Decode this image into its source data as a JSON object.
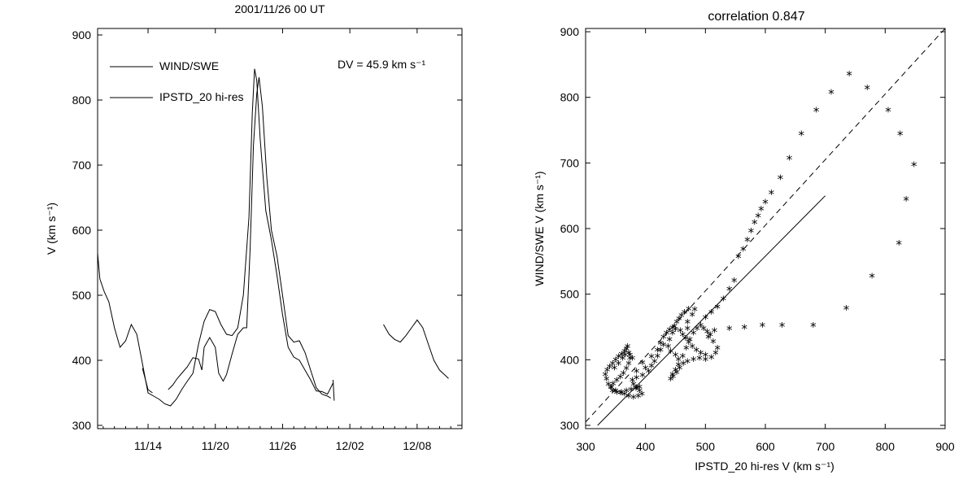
{
  "chart_data": [
    {
      "type": "line",
      "title": "2001/11/26 00 UT",
      "xlabel": "",
      "ylabel": "V (km s⁻¹)",
      "annotation": "DV = 45.9 km s⁻¹",
      "ylim": [
        295,
        910
      ],
      "xlim_days_from_nov14": [
        -4.5,
        28.0
      ],
      "x_ticks": [
        "11/14",
        "11/20",
        "11/26",
        "12/02",
        "12/08"
      ],
      "y_ticks": [
        300,
        400,
        500,
        600,
        700,
        800,
        900
      ],
      "legend": {
        "placement": "top-left",
        "entries": [
          "WIND/SWE",
          "IPSTD_20 hi-res"
        ]
      },
      "series": [
        {
          "name": "WIND/SWE",
          "points": [
            [
              -4.5,
              565
            ],
            [
              -4.3,
              525
            ],
            [
              -3.9,
              505
            ],
            [
              -3.5,
              490
            ],
            [
              -3.0,
              450
            ],
            [
              -2.5,
              420
            ],
            [
              -2.0,
              430
            ],
            [
              -1.5,
              455
            ],
            [
              -1.0,
              440
            ],
            [
              -0.5,
              395
            ],
            [
              0.0,
              350
            ],
            [
              0.5,
              345
            ],
            [
              1.0,
              340
            ],
            [
              1.5,
              333
            ],
            [
              2.0,
              330
            ],
            [
              2.5,
              340
            ],
            [
              3.0,
              355
            ],
            [
              3.5,
              368
            ],
            [
              4.0,
              380
            ],
            [
              4.5,
              425
            ],
            [
              5.0,
              460
            ],
            [
              5.5,
              478
            ],
            [
              6.0,
              475
            ],
            [
              6.5,
              455
            ],
            [
              7.0,
              440
            ],
            [
              7.5,
              438
            ],
            [
              8.0,
              450
            ],
            [
              8.5,
              500
            ],
            [
              9.0,
              620
            ],
            [
              9.3,
              780
            ],
            [
              9.5,
              848
            ],
            [
              9.7,
              830
            ],
            [
              10.0,
              740
            ],
            [
              10.5,
              630
            ],
            [
              11.0,
              585
            ],
            [
              11.5,
              530
            ],
            [
              12.0,
              470
            ],
            [
              12.5,
              420
            ],
            [
              13.0,
              405
            ],
            [
              13.5,
              400
            ],
            [
              14.0,
              385
            ],
            [
              14.5,
              370
            ],
            [
              15.0,
              353
            ],
            [
              15.5,
              352
            ],
            [
              16.0,
              348
            ],
            [
              16.5,
              365
            ]
          ]
        },
        {
          "name": "IPSTD_20 hi-res",
          "segments": [
            [
              [
                -0.5,
                388
              ],
              [
                0.0,
                355
              ],
              [
                0.4,
                350
              ]
            ],
            [
              [
                1.8,
                355
              ],
              [
                2.2,
                362
              ],
              [
                2.6,
                372
              ],
              [
                3.0,
                380
              ],
              [
                3.5,
                390
              ],
              [
                4.0,
                404
              ],
              [
                4.5,
                402
              ],
              [
                4.8,
                385
              ]
            ],
            [
              [
                4.8,
                385
              ],
              [
                5.0,
                420
              ],
              [
                5.5,
                435
              ],
              [
                6.0,
                420
              ],
              [
                6.3,
                380
              ],
              [
                6.7,
                368
              ],
              [
                7.0,
                378
              ],
              [
                7.5,
                410
              ],
              [
                8.0,
                440
              ],
              [
                8.5,
                450
              ],
              [
                8.8,
                450
              ],
              [
                9.1,
                570
              ],
              [
                9.4,
                730
              ],
              [
                9.7,
                810
              ],
              [
                9.9,
                835
              ],
              [
                10.2,
                790
              ],
              [
                10.6,
                680
              ],
              [
                11.0,
                600
              ],
              [
                11.5,
                560
              ],
              [
                12.0,
                500
              ],
              [
                12.5,
                438
              ],
              [
                13.0,
                428
              ],
              [
                13.5,
                430
              ],
              [
                14.0,
                412
              ],
              [
                14.5,
                385
              ],
              [
                15.0,
                358
              ],
              [
                15.5,
                348
              ],
              [
                16.0,
                345
              ],
              [
                16.3,
                342
              ]
            ],
            [
              [
                16.5,
                370
              ],
              [
                16.6,
                338
              ]
            ],
            [
              [
                21.0,
                455
              ],
              [
                21.5,
                440
              ],
              [
                22.0,
                432
              ],
              [
                22.5,
                428
              ],
              [
                23.0,
                438
              ],
              [
                23.5,
                450
              ],
              [
                24.0,
                462
              ],
              [
                24.5,
                450
              ],
              [
                25.0,
                425
              ],
              [
                25.5,
                400
              ],
              [
                26.0,
                385
              ],
              [
                26.5,
                377
              ],
              [
                26.8,
                372
              ]
            ]
          ]
        }
      ]
    },
    {
      "type": "scatter",
      "title": "correlation 0.847",
      "xlabel": "IPSTD_20 hi-res V (km s⁻¹)",
      "ylabel": "WIND/SWE V (km s⁻¹)",
      "xlim": [
        300,
        900
      ],
      "ylim": [
        295,
        905
      ],
      "x_ticks": [
        300,
        400,
        500,
        600,
        700,
        800,
        900
      ],
      "y_ticks": [
        300,
        400,
        500,
        600,
        700,
        800,
        900
      ],
      "reference_lines": [
        {
          "style": "dashed",
          "points": [
            [
              300,
              305
            ],
            [
              900,
              905
            ]
          ]
        },
        {
          "style": "solid",
          "points": [
            [
              320,
              300
            ],
            [
              700,
              650
            ]
          ]
        }
      ],
      "points": [
        [
          740,
          833
        ],
        [
          770,
          812
        ],
        [
          710,
          805
        ],
        [
          685,
          778
        ],
        [
          805,
          778
        ],
        [
          660,
          742
        ],
        [
          825,
          742
        ],
        [
          640,
          705
        ],
        [
          848,
          695
        ],
        [
          625,
          675
        ],
        [
          835,
          642
        ],
        [
          610,
          652
        ],
        [
          600,
          638
        ],
        [
          593,
          627
        ],
        [
          588,
          617
        ],
        [
          582,
          607
        ],
        [
          576,
          594
        ],
        [
          570,
          580
        ],
        [
          563,
          566
        ],
        [
          555,
          555
        ],
        [
          823,
          575
        ],
        [
          548,
          518
        ],
        [
          540,
          505
        ],
        [
          530,
          490
        ],
        [
          520,
          478
        ],
        [
          510,
          470
        ],
        [
          500,
          462
        ],
        [
          778,
          525
        ],
        [
          735,
          476
        ],
        [
          680,
          450
        ],
        [
          628,
          450
        ],
        [
          595,
          450
        ],
        [
          565,
          447
        ],
        [
          540,
          445
        ],
        [
          515,
          442
        ],
        [
          505,
          432
        ],
        [
          513,
          425
        ],
        [
          520,
          415
        ],
        [
          517,
          408
        ],
        [
          510,
          401
        ],
        [
          500,
          398
        ],
        [
          490,
          400
        ],
        [
          480,
          398
        ],
        [
          470,
          395
        ],
        [
          463,
          392
        ],
        [
          457,
          385
        ],
        [
          452,
          378
        ],
        [
          446,
          372
        ],
        [
          442,
          368
        ],
        [
          445,
          375
        ],
        [
          450,
          382
        ],
        [
          455,
          390
        ],
        [
          462,
          403
        ],
        [
          468,
          415
        ],
        [
          474,
          428
        ],
        [
          480,
          438
        ],
        [
          486,
          445
        ],
        [
          492,
          450
        ],
        [
          497,
          445
        ],
        [
          503,
          440
        ],
        [
          508,
          436
        ],
        [
          470,
          445
        ],
        [
          470,
          455
        ],
        [
          478,
          466
        ],
        [
          482,
          474
        ],
        [
          445,
          438
        ],
        [
          448,
          448
        ],
        [
          452,
          455
        ],
        [
          456,
          460
        ],
        [
          460,
          465
        ],
        [
          465,
          470
        ],
        [
          472,
          475
        ],
        [
          440,
          428
        ],
        [
          438,
          418
        ],
        [
          442,
          410
        ],
        [
          450,
          405
        ],
        [
          455,
          398
        ],
        [
          430,
          420
        ],
        [
          425,
          412
        ],
        [
          420,
          403
        ],
        [
          415,
          395
        ],
        [
          410,
          388
        ],
        [
          405,
          380
        ],
        [
          395,
          374
        ],
        [
          385,
          370
        ],
        [
          378,
          366
        ],
        [
          385,
          380
        ],
        [
          395,
          393
        ],
        [
          400,
          385
        ],
        [
          410,
          402
        ],
        [
          420,
          412
        ],
        [
          425,
          423
        ],
        [
          430,
          432
        ],
        [
          435,
          438
        ],
        [
          440,
          443
        ],
        [
          445,
          446
        ],
        [
          450,
          444
        ],
        [
          458,
          442
        ],
        [
          462,
          436
        ],
        [
          467,
          430
        ],
        [
          472,
          424
        ],
        [
          478,
          418
        ],
        [
          485,
          412
        ],
        [
          492,
          408
        ],
        [
          500,
          405
        ],
        [
          380,
          360
        ],
        [
          385,
          355
        ],
        [
          390,
          350
        ],
        [
          394,
          345
        ],
        [
          388,
          342
        ],
        [
          380,
          340
        ],
        [
          372,
          342
        ],
        [
          365,
          345
        ],
        [
          358,
          347
        ],
        [
          350,
          350
        ],
        [
          343,
          355
        ],
        [
          338,
          360
        ],
        [
          335,
          368
        ],
        [
          333,
          375
        ],
        [
          336,
          382
        ],
        [
          340,
          387
        ],
        [
          345,
          392
        ],
        [
          350,
          397
        ],
        [
          355,
          402
        ],
        [
          360,
          406
        ],
        [
          365,
          410
        ],
        [
          368,
          414
        ],
        [
          370,
          418
        ],
        [
          372,
          408
        ],
        [
          374,
          400
        ],
        [
          372,
          392
        ],
        [
          368,
          384
        ],
        [
          363,
          377
        ],
        [
          358,
          371
        ],
        [
          352,
          366
        ],
        [
          346,
          361
        ],
        [
          342,
          356
        ],
        [
          345,
          350
        ],
        [
          352,
          348
        ],
        [
          360,
          348
        ],
        [
          368,
          350
        ],
        [
          376,
          352
        ],
        [
          384,
          354
        ],
        [
          390,
          356
        ],
        [
          362,
          400
        ],
        [
          366,
          405
        ],
        [
          374,
          405
        ],
        [
          378,
          400
        ],
        [
          355,
          392
        ],
        [
          348,
          385
        ]
      ]
    }
  ]
}
